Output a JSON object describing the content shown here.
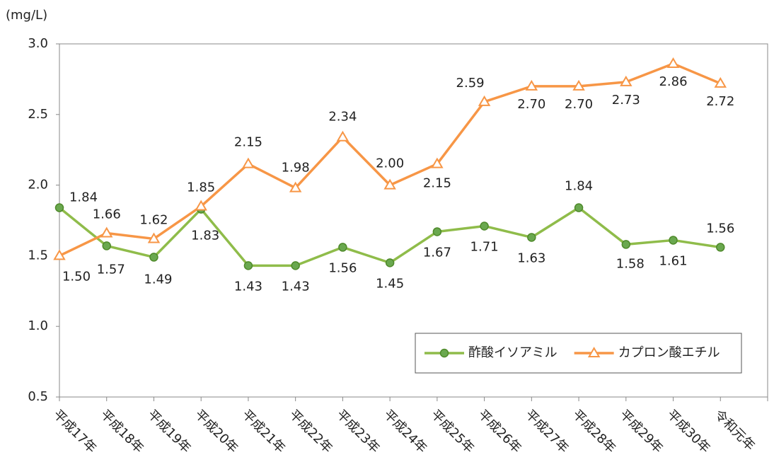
{
  "chart_data": {
    "type": "line",
    "y_unit": "(mg/L)",
    "categories": [
      "平成17年",
      "平成18年",
      "平成19年",
      "平成20年",
      "平成21年",
      "平成22年",
      "平成23年",
      "平成24年",
      "平成25年",
      "平成26年",
      "平成27年",
      "平成28年",
      "平成29年",
      "平成30年",
      "令和元年"
    ],
    "series": [
      {
        "name": "酢酸イソアミル",
        "color": "#8fbc4a",
        "marker": "circle",
        "values": [
          1.84,
          1.57,
          1.49,
          1.83,
          1.43,
          1.43,
          1.56,
          1.45,
          1.67,
          1.71,
          1.63,
          1.84,
          1.58,
          1.61,
          1.56
        ],
        "value_labels": [
          "1.84",
          "1.57",
          "1.49",
          "1.83",
          "1.43",
          "1.43",
          "1.56",
          "1.45",
          "1.67",
          "1.71",
          "1.63",
          "1.84",
          "1.58",
          "1.61",
          "1.56"
        ]
      },
      {
        "name": "カプロン酸エチル",
        "color": "#f79646",
        "marker": "triangle",
        "values": [
          1.5,
          1.66,
          1.62,
          1.85,
          2.15,
          1.98,
          2.34,
          2.0,
          2.15,
          2.59,
          2.7,
          2.7,
          2.73,
          2.86,
          2.72
        ],
        "value_labels": [
          "1.50",
          "1.66",
          "1.62",
          "1.85",
          "2.15",
          "1.98",
          "2.34",
          "2.00",
          "2.15",
          "2.59",
          "2.70",
          "2.70",
          "2.73",
          "2.86",
          "2.72"
        ]
      }
    ],
    "ylim": [
      0.5,
      3.0
    ],
    "yticks": [
      {
        "value": 0.5,
        "label": "0.5"
      },
      {
        "value": 1.0,
        "label": "1.0"
      },
      {
        "value": 1.5,
        "label": "1.5"
      },
      {
        "value": 2.0,
        "label": "2.0"
      },
      {
        "value": 2.5,
        "label": "2.5"
      },
      {
        "value": 3.0,
        "label": "3.0"
      }
    ],
    "grid": false,
    "legend": "lower-right"
  }
}
